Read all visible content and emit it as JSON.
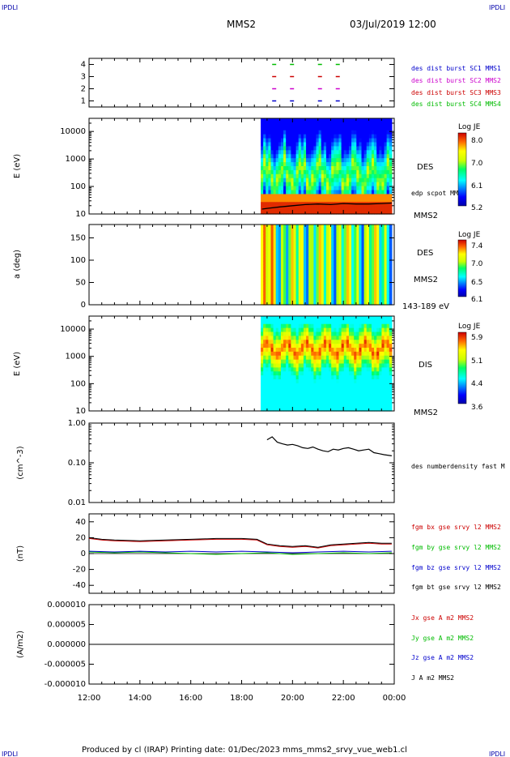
{
  "header": {
    "corner_tl": "IPDLI",
    "corner_tr": "IPDLI",
    "corner_bl": "IPDLI",
    "corner_br": "IPDLI",
    "mission": "MMS2",
    "datetime": "03/Jul/2019 12:00"
  },
  "footer": {
    "text": "Produced by cl (IRAP)   Printing date: 01/Dec/2023   mms_mms2_srvy_vue_web1.cl"
  },
  "x_axis": {
    "range_hours": [
      12,
      24
    ],
    "ticks": [
      "12:00",
      "14:00",
      "16:00",
      "18:00",
      "20:00",
      "22:00",
      "00:00"
    ]
  },
  "panels": {
    "burst": {
      "ticks": [
        "1",
        "2",
        "3",
        "4"
      ],
      "legend": [
        {
          "text": "des dist burst SC1 MMS1",
          "color": "#0000cc"
        },
        {
          "text": "des dist burst SC2 MMS2",
          "color": "#cc00cc"
        },
        {
          "text": "des dist burst SC3 MMS3",
          "color": "#cc0000"
        },
        {
          "text": "des dist burst SC4 MMS4",
          "color": "#00bb00"
        }
      ]
    },
    "des_energy": {
      "ylabel": "E (eV)",
      "ticks": [
        "10",
        "100",
        "1000",
        "10000"
      ],
      "instrument": "DES",
      "spacecraft": "MMS2",
      "overlay": "edp scpot MMS2",
      "cbar_title": "Log JE",
      "cbar_ticks": [
        "5.2",
        "6.1",
        "7.0",
        "8.0"
      ]
    },
    "des_pitch": {
      "ylabel": "a (deg)",
      "ticks": [
        "0",
        "50",
        "100",
        "150"
      ],
      "instrument": "DES",
      "spacecraft": "MMS2",
      "range_label": "143-189 eV",
      "cbar_title": "Log JE",
      "cbar_ticks": [
        "6.1",
        "6.5",
        "7.0",
        "7.4"
      ]
    },
    "dis_energy": {
      "ylabel": "E (eV)",
      "ticks": [
        "10",
        "100",
        "1000",
        "10000"
      ],
      "instrument": "DIS",
      "spacecraft": "MMS2",
      "cbar_title": "Log JE",
      "cbar_ticks": [
        "3.6",
        "4.4",
        "5.1",
        "5.9"
      ]
    },
    "density": {
      "ylabel": "(cm^-3)",
      "ticks": [
        "0.01",
        "0.10",
        "1.00"
      ],
      "legend": "des numberdensity fast M"
    },
    "bfield": {
      "ylabel": "(nT)",
      "ticks": [
        "-40",
        "-20",
        "0",
        "20",
        "40"
      ],
      "legend": [
        {
          "text": "fgm bx gse srvy l2 MMS2",
          "color": "#cc0000"
        },
        {
          "text": "fgm by gse srvy l2 MMS2",
          "color": "#00bb00"
        },
        {
          "text": "fgm bz gse srvy l2 MMS2",
          "color": "#0000cc"
        },
        {
          "text": "fgm bt gse srvy l2 MMS2",
          "color": "#000000"
        }
      ]
    },
    "current": {
      "ylabel": "(A/m2)",
      "ticks": [
        "-0.000010",
        "-0.000005",
        "0.000000",
        "0.000005",
        "0.000010"
      ],
      "legend": [
        {
          "text": "Jx gse A m2 MMS2",
          "color": "#cc0000"
        },
        {
          "text": "Jy gse A m2 MMS2",
          "color": "#00bb00"
        },
        {
          "text": "Jz gse A m2 MMS2",
          "color": "#0000cc"
        },
        {
          "text": "J A m2 MMS2",
          "color": "#000000"
        }
      ]
    }
  },
  "chart_data": [
    {
      "type": "scatter",
      "x_unit": "hour",
      "y_range": [
        0.5,
        4.5
      ],
      "series": [
        {
          "name": "des dist burst SC1 MMS1",
          "y": 1,
          "x": [
            19.2,
            19.9,
            21.0,
            21.7
          ]
        },
        {
          "name": "des dist burst SC2 MMS2",
          "y": 2,
          "x": [
            19.2,
            19.9,
            21.0,
            21.7
          ]
        },
        {
          "name": "des dist burst SC3 MMS3",
          "y": 3,
          "x": [
            19.2,
            19.9,
            21.0,
            21.7
          ]
        },
        {
          "name": "des dist burst SC4 MMS4",
          "y": 4,
          "x": [
            19.2,
            19.9,
            21.0,
            21.7
          ]
        }
      ]
    },
    {
      "type": "heatmap",
      "x_range_hours": [
        18.75,
        23.9
      ],
      "y_scale": "log",
      "y_range": [
        10,
        30000
      ],
      "z_range": [
        5.2,
        8.0
      ],
      "overlay_scpot": [
        [
          18.8,
          15
        ],
        [
          19.0,
          16
        ],
        [
          19.5,
          18
        ],
        [
          20.0,
          20
        ],
        [
          20.5,
          22
        ],
        [
          21.0,
          23
        ],
        [
          21.5,
          22
        ],
        [
          22.0,
          24
        ],
        [
          22.5,
          23
        ],
        [
          23.0,
          23
        ],
        [
          23.5,
          24
        ],
        [
          23.9,
          25
        ]
      ]
    },
    {
      "type": "heatmap",
      "x_range_hours": [
        18.75,
        23.9
      ],
      "y_range": [
        0,
        180
      ],
      "z_range": [
        6.1,
        7.4
      ]
    },
    {
      "type": "heatmap",
      "x_range_hours": [
        18.75,
        23.9
      ],
      "y_scale": "log",
      "y_range": [
        10,
        30000
      ],
      "z_range": [
        3.6,
        5.9
      ]
    },
    {
      "type": "line",
      "y_scale": "log",
      "y_range": [
        0.01,
        1.0
      ],
      "series": [
        {
          "name": "des numberdensity fast M",
          "points": [
            [
              19.0,
              0.38
            ],
            [
              19.2,
              0.45
            ],
            [
              19.4,
              0.33
            ],
            [
              19.6,
              0.3
            ],
            [
              19.8,
              0.28
            ],
            [
              20.0,
              0.29
            ],
            [
              20.2,
              0.27
            ],
            [
              20.4,
              0.24
            ],
            [
              20.6,
              0.23
            ],
            [
              20.8,
              0.25
            ],
            [
              21.0,
              0.22
            ],
            [
              21.2,
              0.2
            ],
            [
              21.4,
              0.19
            ],
            [
              21.6,
              0.22
            ],
            [
              21.8,
              0.21
            ],
            [
              22.0,
              0.23
            ],
            [
              22.2,
              0.24
            ],
            [
              22.4,
              0.22
            ],
            [
              22.6,
              0.2
            ],
            [
              22.8,
              0.21
            ],
            [
              23.0,
              0.22
            ],
            [
              23.2,
              0.18
            ],
            [
              23.4,
              0.17
            ],
            [
              23.6,
              0.16
            ],
            [
              23.9,
              0.15
            ]
          ]
        }
      ]
    },
    {
      "type": "line",
      "y_range": [
        -50,
        50
      ],
      "series": [
        {
          "name": "fgm bx gse srvy l2 MMS2",
          "points": [
            [
              12.0,
              19
            ],
            [
              12.5,
              17
            ],
            [
              13.0,
              16
            ],
            [
              14.0,
              15
            ],
            [
              15.0,
              16
            ],
            [
              16.0,
              17
            ],
            [
              17.0,
              18
            ],
            [
              18.0,
              18
            ],
            [
              18.6,
              17
            ],
            [
              19.0,
              11
            ],
            [
              19.5,
              9
            ],
            [
              20.0,
              8
            ],
            [
              20.5,
              9
            ],
            [
              21.0,
              7
            ],
            [
              21.5,
              10
            ],
            [
              22.0,
              11
            ],
            [
              22.5,
              12
            ],
            [
              23.0,
              13
            ],
            [
              23.5,
              12
            ],
            [
              23.9,
              12
            ]
          ]
        },
        {
          "name": "fgm by gse srvy l2 MMS2",
          "points": [
            [
              12.0,
              2
            ],
            [
              13.0,
              1
            ],
            [
              14.0,
              2
            ],
            [
              15.0,
              1
            ],
            [
              16.0,
              0
            ],
            [
              17.0,
              -1
            ],
            [
              18.0,
              0
            ],
            [
              19.0,
              1
            ],
            [
              20.0,
              -1
            ],
            [
              21.0,
              0
            ],
            [
              22.0,
              1
            ],
            [
              23.0,
              0
            ],
            [
              23.9,
              1
            ]
          ]
        },
        {
          "name": "fgm bz gse srvy l2 MMS2",
          "points": [
            [
              12.0,
              3
            ],
            [
              13.0,
              2
            ],
            [
              14.0,
              3
            ],
            [
              15.0,
              2
            ],
            [
              16.0,
              3
            ],
            [
              17.0,
              2
            ],
            [
              18.0,
              3
            ],
            [
              19.0,
              2
            ],
            [
              20.0,
              1
            ],
            [
              21.0,
              2
            ],
            [
              22.0,
              3
            ],
            [
              23.0,
              2
            ],
            [
              23.9,
              3
            ]
          ]
        },
        {
          "name": "fgm bt gse srvy l2 MMS2",
          "points": [
            [
              12.0,
              20
            ],
            [
              12.5,
              18
            ],
            [
              13.0,
              17
            ],
            [
              14.0,
              16
            ],
            [
              15.0,
              17
            ],
            [
              16.0,
              18
            ],
            [
              17.0,
              19
            ],
            [
              18.0,
              19
            ],
            [
              18.6,
              18
            ],
            [
              19.0,
              12
            ],
            [
              19.5,
              10
            ],
            [
              20.0,
              9
            ],
            [
              20.5,
              10
            ],
            [
              21.0,
              8
            ],
            [
              21.5,
              11
            ],
            [
              22.0,
              12
            ],
            [
              22.5,
              13
            ],
            [
              23.0,
              14
            ],
            [
              23.5,
              13
            ],
            [
              23.9,
              13
            ]
          ]
        }
      ]
    },
    {
      "type": "line",
      "y_range": [
        -1e-05,
        1e-05
      ],
      "series": [
        {
          "name": "J A m2 MMS2",
          "points": [
            [
              12.0,
              0.0
            ],
            [
              23.9,
              0.0
            ]
          ]
        }
      ]
    }
  ]
}
